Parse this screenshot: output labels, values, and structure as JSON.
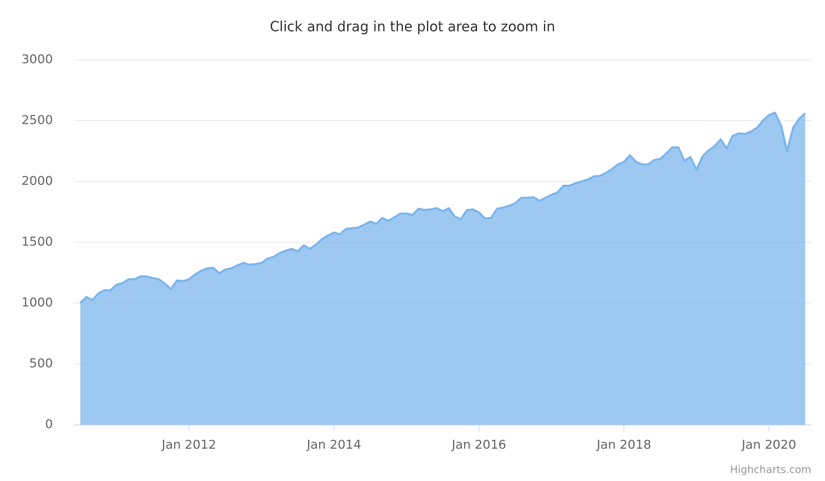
{
  "chart_data": {
    "type": "area",
    "title": "Click and drag in the plot area to zoom in",
    "credits": "Highcharts.com",
    "color": "#7cb5ec",
    "grid": true,
    "ylim": [
      0,
      3000
    ],
    "yticks": [
      0,
      500,
      1000,
      1500,
      2000,
      2500,
      3000
    ],
    "xlim": [
      "2010-06",
      "2020-08"
    ],
    "xticks": [
      {
        "value": "2012-01",
        "label": "Jan 2012"
      },
      {
        "value": "2014-01",
        "label": "Jan 2014"
      },
      {
        "value": "2016-01",
        "label": "Jan 2016"
      },
      {
        "value": "2018-01",
        "label": "Jan 2018"
      },
      {
        "value": "2020-01",
        "label": "Jan 2020"
      }
    ],
    "x": [
      "2010-07",
      "2010-08",
      "2010-09",
      "2010-10",
      "2010-11",
      "2010-12",
      "2011-01",
      "2011-02",
      "2011-03",
      "2011-04",
      "2011-05",
      "2011-06",
      "2011-07",
      "2011-08",
      "2011-09",
      "2011-10",
      "2011-11",
      "2011-12",
      "2012-01",
      "2012-02",
      "2012-03",
      "2012-04",
      "2012-05",
      "2012-06",
      "2012-07",
      "2012-08",
      "2012-09",
      "2012-10",
      "2012-11",
      "2012-12",
      "2013-01",
      "2013-02",
      "2013-03",
      "2013-04",
      "2013-05",
      "2013-06",
      "2013-07",
      "2013-08",
      "2013-09",
      "2013-10",
      "2013-11",
      "2013-12",
      "2014-01",
      "2014-02",
      "2014-03",
      "2014-04",
      "2014-05",
      "2014-06",
      "2014-07",
      "2014-08",
      "2014-09",
      "2014-10",
      "2014-11",
      "2014-12",
      "2015-01",
      "2015-02",
      "2015-03",
      "2015-04",
      "2015-05",
      "2015-06",
      "2015-07",
      "2015-08",
      "2015-09",
      "2015-10",
      "2015-11",
      "2015-12",
      "2016-01",
      "2016-02",
      "2016-03",
      "2016-04",
      "2016-05",
      "2016-06",
      "2016-07",
      "2016-08",
      "2016-09",
      "2016-10",
      "2016-11",
      "2016-12",
      "2017-01",
      "2017-02",
      "2017-03",
      "2017-04",
      "2017-05",
      "2017-06",
      "2017-07",
      "2017-08",
      "2017-09",
      "2017-10",
      "2017-11",
      "2017-12",
      "2018-01",
      "2018-02",
      "2018-03",
      "2018-04",
      "2018-05",
      "2018-06",
      "2018-07",
      "2018-08",
      "2018-09",
      "2018-10",
      "2018-11",
      "2018-12",
      "2019-01",
      "2019-02",
      "2019-03",
      "2019-04",
      "2019-05",
      "2019-06",
      "2019-07",
      "2019-08",
      "2019-09",
      "2019-10",
      "2019-11",
      "2019-12",
      "2020-01",
      "2020-02",
      "2020-03",
      "2020-04",
      "2020-05",
      "2020-06",
      "2020-07"
    ],
    "values": [
      1000,
      1050,
      1025,
      1080,
      1105,
      1105,
      1150,
      1165,
      1195,
      1195,
      1220,
      1218,
      1205,
      1195,
      1160,
      1115,
      1185,
      1180,
      1195,
      1235,
      1265,
      1285,
      1290,
      1245,
      1275,
      1285,
      1310,
      1330,
      1315,
      1320,
      1330,
      1365,
      1380,
      1410,
      1430,
      1445,
      1425,
      1475,
      1445,
      1480,
      1525,
      1555,
      1580,
      1565,
      1610,
      1615,
      1620,
      1645,
      1670,
      1650,
      1700,
      1675,
      1705,
      1735,
      1735,
      1725,
      1775,
      1765,
      1770,
      1780,
      1755,
      1780,
      1710,
      1690,
      1765,
      1770,
      1745,
      1695,
      1700,
      1775,
      1785,
      1800,
      1820,
      1865,
      1865,
      1870,
      1840,
      1865,
      1890,
      1910,
      1965,
      1965,
      1985,
      2000,
      2015,
      2040,
      2045,
      2070,
      2100,
      2140,
      2160,
      2215,
      2160,
      2140,
      2140,
      2175,
      2185,
      2230,
      2280,
      2280,
      2170,
      2200,
      2095,
      2205,
      2255,
      2290,
      2345,
      2270,
      2375,
      2395,
      2390,
      2410,
      2440,
      2500,
      2545,
      2565,
      2460,
      2250,
      2440,
      2515,
      2560
    ]
  }
}
